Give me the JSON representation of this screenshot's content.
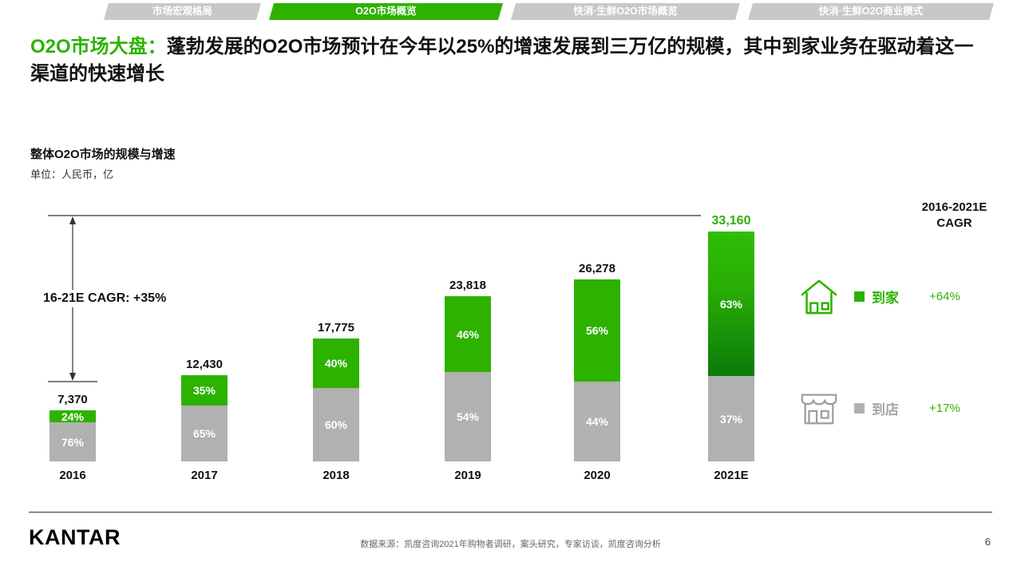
{
  "tabs": [
    {
      "label": "市场宏观格局",
      "active": false
    },
    {
      "label": "O2O市场概览",
      "active": true
    },
    {
      "label": "快消·生鲜O2O市场概览",
      "active": false
    },
    {
      "label": "快消·生鲜O2O商业模式",
      "active": false
    }
  ],
  "title": {
    "highlight": "O2O市场大盘：",
    "rest": "蓬勃发展的O2O市场预计在今年以25%的增速发展到三万亿的规模，其中到家业务在驱动着这一渠道的快速增长"
  },
  "chart_data": {
    "type": "bar",
    "stacked": true,
    "title": "整体O2O市场的规模与增速",
    "unit_label": "单位：人民币，亿",
    "categories": [
      "2016",
      "2017",
      "2018",
      "2019",
      "2020",
      "2021E"
    ],
    "totals": [
      7370,
      12430,
      17775,
      23818,
      26278,
      33160
    ],
    "total_labels": [
      "7,370",
      "12,430",
      "17,775",
      "23,818",
      "26,278",
      "33,160"
    ],
    "series": [
      {
        "name": "到家",
        "color": "#2db200",
        "pct": [
          24,
          35,
          40,
          46,
          56,
          63
        ],
        "pct_labels": [
          "24%",
          "35%",
          "40%",
          "46%",
          "56%",
          "63%"
        ],
        "cagr": "+64%"
      },
      {
        "name": "到店",
        "color": "#b1b1b1",
        "pct": [
          76,
          65,
          60,
          54,
          44,
          37
        ],
        "pct_labels": [
          "76%",
          "65%",
          "60%",
          "54%",
          "44%",
          "37%"
        ],
        "cagr": "+17%"
      }
    ],
    "ymax": 33160,
    "grid": false,
    "legend_position": "right",
    "annotation": "16-21E CAGR: +35%",
    "legend_header_line1": "2016-2021E",
    "legend_header_line2": "CAGR"
  },
  "colors": {
    "accent_green": "#2db200",
    "dark_green": "#0a7a0a",
    "bar_gray": "#b1b1b1",
    "tab_inactive": "#c8c8c8"
  },
  "footer": {
    "logo": "KANTAR",
    "source": "数据来源：凯度咨询2021年购物者调研，案头研究，专家访谈，凯度咨询分析",
    "page": "6"
  }
}
